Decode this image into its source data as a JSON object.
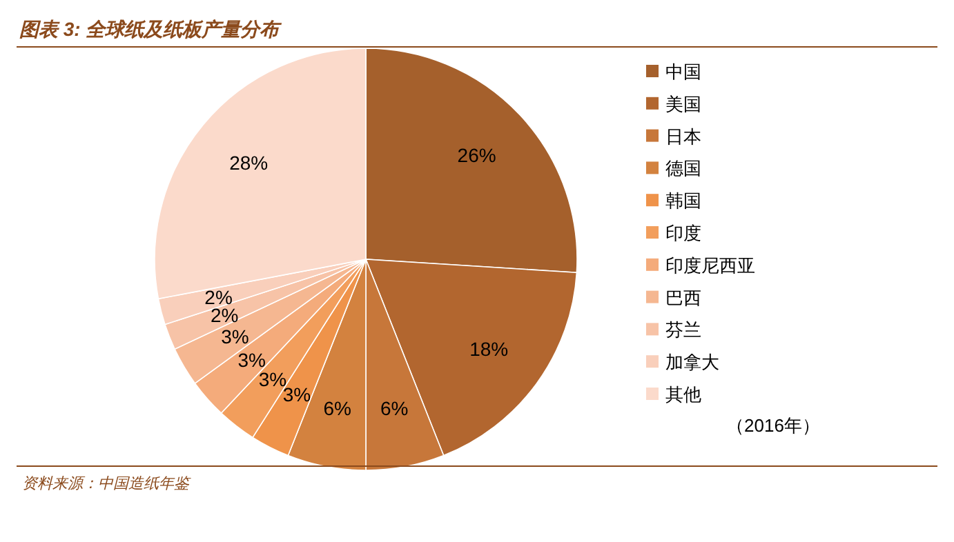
{
  "chart_data": {
    "type": "pie",
    "title": "图表 3: 全球纸及纸板产量分布",
    "categories": [
      "中国",
      "美国",
      "日本",
      "德国",
      "韩国",
      "印度",
      "印度尼西亚",
      "巴西",
      "芬兰",
      "加拿大",
      "其他"
    ],
    "values": [
      26,
      18,
      6,
      6,
      3,
      3,
      3,
      3,
      2,
      2,
      28
    ],
    "colors": [
      "#a5602c",
      "#b2662f",
      "#c7773a",
      "#d3823f",
      "#ef934a",
      "#f29e5c",
      "#f4ab7b",
      "#f5b791",
      "#f7c3a7",
      "#f9cfbb",
      "#fbdacb"
    ],
    "value_labels": [
      "26%",
      "18%",
      "6%",
      "6%",
      "3%",
      "3%",
      "3%",
      "3%",
      "2%",
      "2%",
      "28%"
    ],
    "legend": "right",
    "annotations": [
      "（2016年）",
      "资料来源：中国造纸年鉴"
    ]
  }
}
